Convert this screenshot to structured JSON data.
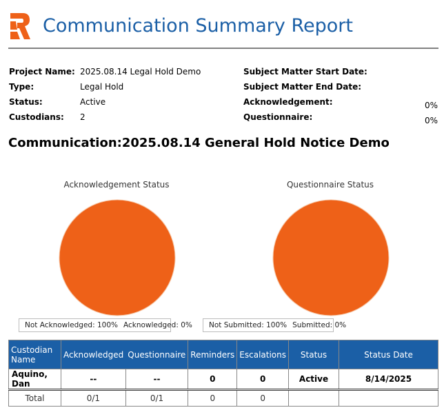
{
  "header": {
    "title": "Communication Summary Report",
    "logo_letter": "R"
  },
  "info": {
    "left": [
      {
        "label": "Project Name:",
        "value": "2025.08.14 Legal Hold Demo"
      },
      {
        "label": "Type:",
        "value": "Legal Hold"
      },
      {
        "label": "Status:",
        "value": "Active"
      },
      {
        "label": "Custodians:",
        "value": "2"
      }
    ],
    "right": [
      {
        "label": "Subject Matter Start Date:",
        "value": ""
      },
      {
        "label": "Subject Matter End Date:",
        "value": ""
      },
      {
        "label": "Acknowledgement:",
        "value": "0%"
      },
      {
        "label": "Questionnaire:",
        "value": "0%"
      }
    ]
  },
  "communication_title": "Communication:2025.08.14 General Hold Notice Demo",
  "colors": {
    "orange": "#ee6118",
    "blue": "#1b5fa6"
  },
  "chart_data": [
    {
      "type": "pie",
      "title": "Acknowledgement Status",
      "categories": [
        "Not Acknowledged",
        "Acknowledged"
      ],
      "values": [
        100,
        0
      ],
      "legend": [
        "Not Acknowledged: 100%",
        "Acknowledged: 0%"
      ],
      "legend_position": "bottom"
    },
    {
      "type": "pie",
      "title": "Questionnaire Status",
      "categories": [
        "Not Submitted",
        "Submitted"
      ],
      "values": [
        100,
        0
      ],
      "legend": [
        "Not Submitted: 100%",
        "Submitted: 0%"
      ],
      "legend_position": "bottom"
    }
  ],
  "table": {
    "headers": [
      "Custodian Name",
      "Acknowledged",
      "Questionnaire",
      "Reminders",
      "Escalations",
      "Status",
      "Status Date"
    ],
    "rows": [
      [
        "Aquino, Dan",
        "--",
        "--",
        "0",
        "0",
        "Active",
        "8/14/2025"
      ]
    ],
    "total": [
      "Total",
      "0/1",
      "0/1",
      "0",
      "0",
      "",
      ""
    ]
  }
}
